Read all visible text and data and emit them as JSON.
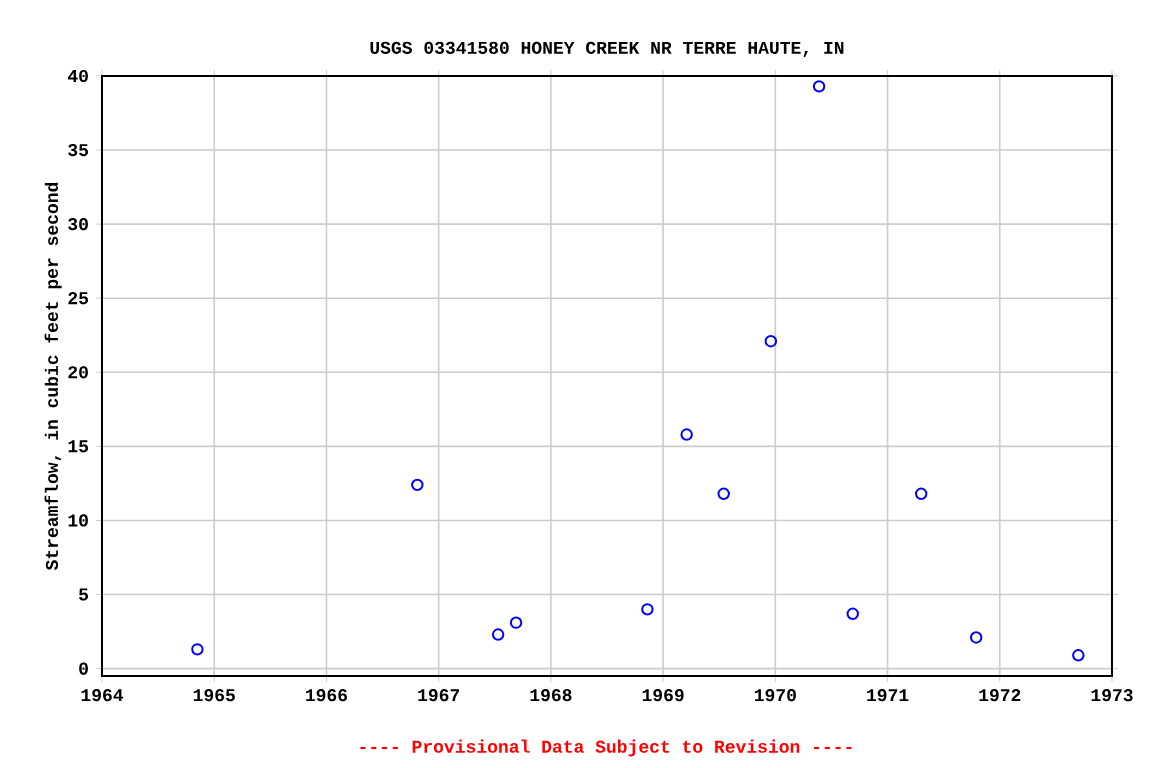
{
  "chart_data": {
    "type": "scatter",
    "title": "USGS 03341580 HONEY CREEK NR TERRE HAUTE, IN",
    "ylabel": "Streamflow, in cubic feet per second",
    "annotations": [
      "---- Provisional Data Subject to Revision ----"
    ],
    "x": [
      1964.85,
      1966.81,
      1967.53,
      1967.69,
      1968.86,
      1969.21,
      1969.54,
      1969.96,
      1970.39,
      1970.69,
      1971.3,
      1971.79,
      1972.7
    ],
    "values": [
      1.3,
      12.4,
      2.3,
      3.1,
      4.0,
      15.8,
      11.8,
      22.1,
      39.3,
      3.7,
      11.8,
      2.1,
      0.9
    ],
    "color": "#0000ff",
    "marker": "circle",
    "grid": true,
    "xlim": [
      1964,
      1973
    ],
    "xticks": [
      1964,
      1965,
      1966,
      1967,
      1968,
      1969,
      1970,
      1971,
      1972,
      1973
    ],
    "ylim": [
      -0.5,
      40
    ],
    "yticks": [
      0,
      5,
      10,
      15,
      20,
      25,
      30,
      35,
      40
    ]
  }
}
